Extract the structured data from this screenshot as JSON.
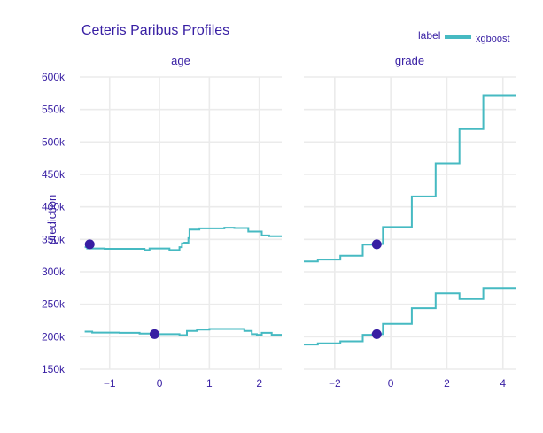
{
  "chart_data": {
    "type": "line",
    "title": "Ceteris Paribus Profiles",
    "ylabel": "prediction",
    "xlabel": "",
    "ylim": [
      150000,
      600000
    ],
    "yticks": [
      150000,
      200000,
      250000,
      300000,
      350000,
      400000,
      450000,
      500000,
      550000,
      600000
    ],
    "ytick_labels": [
      "150k",
      "200k",
      "250k",
      "300k",
      "350k",
      "400k",
      "450k",
      "500k",
      "550k",
      "600k"
    ],
    "grid": true,
    "legend": {
      "title": "label",
      "entries": [
        "xgboost"
      ],
      "placement": "top-right"
    },
    "colors": {
      "line": "#46bac2",
      "point": "#371ea3",
      "text": "#371ea3"
    },
    "panels": [
      {
        "name": "age",
        "xlim": [
          -1.6,
          2.45
        ],
        "xticks": [
          -1,
          0,
          1,
          2
        ],
        "xtick_labels": [
          "−1",
          "0",
          "1",
          "2"
        ],
        "profiles": [
          {
            "series": "xgboost",
            "x": [
              -1.5,
              -1.45,
              -1.45,
              -1.1,
              -1.1,
              -0.3,
              -0.3,
              -0.2,
              -0.2,
              0.2,
              0.2,
              0.4,
              0.4,
              0.45,
              0.45,
              0.5,
              0.5,
              0.58,
              0.58,
              0.6,
              0.6,
              0.8,
              0.8,
              1.3,
              1.3,
              1.5,
              1.5,
              1.78,
              1.78,
              2.05,
              2.05,
              2.2,
              2.2,
              2.45
            ],
            "y": [
              338000,
              338000,
              336000,
              336000,
              335500,
              335500,
              333500,
              333500,
              336000,
              336000,
              333500,
              333500,
              338000,
              338000,
              344000,
              344000,
              345000,
              345000,
              352000,
              352000,
              365000,
              365000,
              367000,
              367000,
              368000,
              368000,
              367500,
              367500,
              362000,
              362000,
              356000,
              356000,
              355000,
              355000
            ]
          },
          {
            "series": "xgboost",
            "x": [
              -1.5,
              -1.35,
              -1.35,
              -0.8,
              -0.8,
              -0.4,
              -0.4,
              -0.1,
              -0.1,
              0.4,
              0.4,
              0.55,
              0.55,
              0.75,
              0.75,
              1.0,
              1.0,
              1.7,
              1.7,
              1.85,
              1.85,
              1.95,
              1.95,
              2.05,
              2.05,
              2.25,
              2.25,
              2.45
            ],
            "y": [
              208000,
              208000,
              206500,
              206500,
              206000,
              206000,
              205000,
              205000,
              204000,
              204000,
              202500,
              202500,
              209000,
              209000,
              211000,
              211000,
              212000,
              212000,
              209000,
              209000,
              204000,
              204000,
              203000,
              203000,
              206000,
              206000,
              203000,
              203000
            ]
          }
        ],
        "observations": [
          {
            "x": -1.4,
            "y": 342500
          },
          {
            "x": -0.1,
            "y": 204000
          }
        ]
      },
      {
        "name": "grade",
        "xlim": [
          -3.1,
          4.45
        ],
        "xticks": [
          -2,
          0,
          2,
          4
        ],
        "xtick_labels": [
          "−2",
          "0",
          "2",
          "4"
        ],
        "profiles": [
          {
            "series": "xgboost",
            "x": [
              -3.1,
              -2.6,
              -2.6,
              -1.8,
              -1.8,
              -1.0,
              -1.0,
              -0.65,
              -0.65,
              -0.28,
              -0.28,
              0.35,
              0.35,
              0.75,
              0.75,
              1.6,
              1.6,
              2.45,
              2.45,
              3.3,
              3.3,
              4.45
            ],
            "y": [
              316000,
              316000,
              319000,
              319000,
              325000,
              325000,
              342000,
              342000,
              343000,
              343000,
              369000,
              369000,
              369000,
              369000,
              416000,
              416000,
              467000,
              467000,
              520000,
              520000,
              572000,
              572000
            ]
          },
          {
            "series": "xgboost",
            "x": [
              -3.1,
              -2.6,
              -2.6,
              -1.8,
              -1.8,
              -1.0,
              -1.0,
              -0.65,
              -0.65,
              -0.28,
              -0.28,
              0.35,
              0.35,
              0.75,
              0.75,
              1.6,
              1.6,
              2.45,
              2.45,
              3.3,
              3.3,
              4.45
            ],
            "y": [
              188000,
              188000,
              190000,
              190000,
              193000,
              193000,
              203000,
              203000,
              204000,
              204000,
              220000,
              220000,
              220000,
              220000,
              244000,
              244000,
              267000,
              267000,
              258000,
              258000,
              275000,
              275000
            ]
          }
        ],
        "observations": [
          {
            "x": -0.5,
            "y": 342500
          },
          {
            "x": -0.5,
            "y": 204000
          }
        ]
      }
    ]
  }
}
